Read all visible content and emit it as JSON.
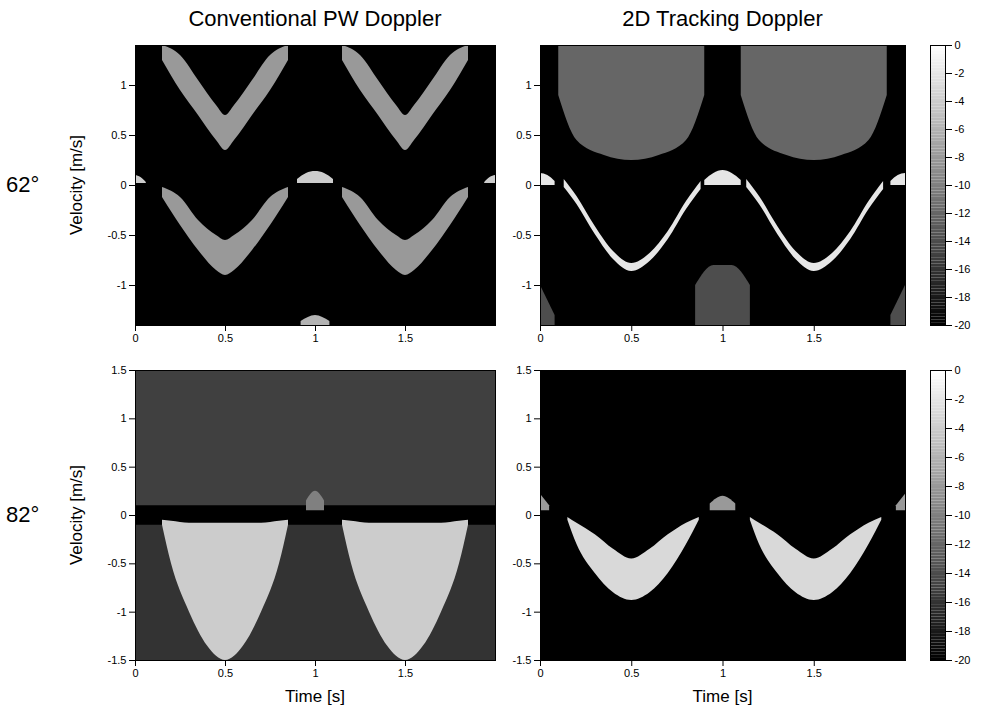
{
  "column_titles": [
    "Conventional PW Doppler",
    "2D Tracking Doppler"
  ],
  "row_titles": [
    "62°",
    "82°"
  ],
  "chart_data": [
    {
      "type": "area",
      "ylabel": "Velocity [m/s]",
      "xlim": [
        0,
        2
      ],
      "xticks": [
        0,
        0.5,
        1,
        1.5
      ],
      "ylim": [
        -1.4,
        1.4
      ],
      "yticks": [
        -1,
        -0.5,
        0,
        0.5,
        1
      ],
      "bands": [
        {
          "x": [
            0.15,
            0.25,
            0.35,
            0.45,
            0.5,
            0.55,
            0.65,
            0.75,
            0.85
          ],
          "lower": [
            1.25,
            0.95,
            0.7,
            0.45,
            0.35,
            0.45,
            0.7,
            0.95,
            1.25
          ],
          "upper": [
            1.4,
            1.3,
            1.05,
            0.8,
            0.7,
            0.8,
            1.05,
            1.3,
            1.4
          ],
          "level": -8
        },
        {
          "x": [
            1.15,
            1.25,
            1.35,
            1.45,
            1.5,
            1.55,
            1.65,
            1.75,
            1.85
          ],
          "lower": [
            1.25,
            0.95,
            0.7,
            0.45,
            0.35,
            0.45,
            0.7,
            0.95,
            1.25
          ],
          "upper": [
            1.4,
            1.3,
            1.05,
            0.8,
            0.7,
            0.8,
            1.05,
            1.3,
            1.4
          ],
          "level": -8
        },
        {
          "x": [
            0.15,
            0.25,
            0.35,
            0.45,
            0.5,
            0.55,
            0.65,
            0.75,
            0.85
          ],
          "lower": [
            -0.12,
            -0.4,
            -0.65,
            -0.85,
            -0.9,
            -0.85,
            -0.65,
            -0.4,
            -0.12
          ],
          "upper": [
            -0.02,
            -0.12,
            -0.35,
            -0.5,
            -0.55,
            -0.5,
            -0.35,
            -0.12,
            -0.02
          ],
          "level": -8
        },
        {
          "x": [
            1.15,
            1.25,
            1.35,
            1.45,
            1.5,
            1.55,
            1.65,
            1.75,
            1.85
          ],
          "lower": [
            -0.12,
            -0.4,
            -0.65,
            -0.85,
            -0.9,
            -0.85,
            -0.65,
            -0.4,
            -0.12
          ],
          "upper": [
            -0.02,
            -0.12,
            -0.35,
            -0.5,
            -0.55,
            -0.5,
            -0.35,
            -0.12,
            -0.02
          ],
          "level": -8
        },
        {
          "x": [
            0.9,
            0.95,
            1.0,
            1.05,
            1.1
          ],
          "lower": [
            0.02,
            0.02,
            0.02,
            0.02,
            0.02
          ],
          "upper": [
            0.06,
            0.12,
            0.14,
            0.12,
            0.06
          ],
          "level": -4
        },
        {
          "x": [
            0,
            0.03,
            0.06
          ],
          "lower": [
            0.02,
            0.02,
            0.02
          ],
          "upper": [
            0.1,
            0.08,
            0.03
          ],
          "level": -4
        },
        {
          "x": [
            1.94,
            1.97,
            2
          ],
          "lower": [
            0.02,
            0.02,
            0.02
          ],
          "upper": [
            0.03,
            0.08,
            0.1
          ],
          "level": -4
        },
        {
          "x": [
            0.92,
            1.0,
            1.08
          ],
          "lower": [
            -1.4,
            -1.4,
            -1.4
          ],
          "upper": [
            -1.36,
            -1.3,
            -1.36
          ],
          "level": -6
        }
      ]
    },
    {
      "type": "area",
      "xlim": [
        0,
        2
      ],
      "xticks": [
        0,
        0.5,
        1,
        1.5
      ],
      "ylim": [
        -1.4,
        1.4
      ],
      "yticks": [
        -1,
        -0.5,
        0,
        0.5,
        1
      ],
      "colorbar": {
        "range": [
          -20,
          0
        ],
        "ticks": [
          0,
          -2,
          -4,
          -6,
          -8,
          -10,
          -12,
          -14,
          -16,
          -18,
          -20
        ]
      },
      "bands": [
        {
          "x": [
            0.1,
            0.2,
            0.35,
            0.5,
            0.65,
            0.8,
            0.9
          ],
          "lower": [
            0.9,
            0.45,
            0.3,
            0.25,
            0.3,
            0.45,
            0.9
          ],
          "upper": [
            1.4,
            1.4,
            1.4,
            1.4,
            1.4,
            1.4,
            1.4
          ],
          "level": -12
        },
        {
          "x": [
            1.1,
            1.2,
            1.35,
            1.5,
            1.65,
            1.8,
            1.9
          ],
          "lower": [
            0.9,
            0.45,
            0.3,
            0.25,
            0.3,
            0.45,
            0.9
          ],
          "upper": [
            1.4,
            1.4,
            1.4,
            1.4,
            1.4,
            1.4,
            1.4
          ],
          "level": -12
        },
        {
          "x": [
            0.85,
            0.95,
            1.05,
            1.15
          ],
          "lower": [
            -1.4,
            -1.4,
            -1.4,
            -1.4
          ],
          "upper": [
            -1.0,
            -0.8,
            -0.8,
            -1.0
          ],
          "level": -14
        },
        {
          "x": [
            0,
            0.08
          ],
          "lower": [
            -1.4,
            -1.4
          ],
          "upper": [
            -1.0,
            -1.3
          ],
          "level": -14
        },
        {
          "x": [
            1.92,
            2
          ],
          "lower": [
            -1.4,
            -1.4
          ],
          "upper": [
            -1.3,
            -1.0
          ],
          "level": -14
        },
        {
          "x": [
            0.13,
            0.2,
            0.3,
            0.4,
            0.5,
            0.6,
            0.7,
            0.8,
            0.88
          ],
          "lower": [
            -0.02,
            -0.19,
            -0.49,
            -0.74,
            -0.86,
            -0.76,
            -0.54,
            -0.24,
            -0.04
          ],
          "upper": [
            0.06,
            -0.11,
            -0.41,
            -0.66,
            -0.78,
            -0.68,
            -0.46,
            -0.16,
            0.04
          ],
          "level": -2
        },
        {
          "x": [
            1.13,
            1.2,
            1.3,
            1.4,
            1.5,
            1.6,
            1.7,
            1.8,
            1.88
          ],
          "lower": [
            -0.02,
            -0.19,
            -0.49,
            -0.74,
            -0.86,
            -0.76,
            -0.54,
            -0.24,
            -0.04
          ],
          "upper": [
            0.06,
            -0.11,
            -0.41,
            -0.66,
            -0.78,
            -0.68,
            -0.46,
            -0.16,
            0.04
          ],
          "level": -2
        },
        {
          "x": [
            0.9,
            0.95,
            1.0,
            1.05,
            1.1
          ],
          "lower": [
            0,
            0,
            0,
            0,
            0
          ],
          "upper": [
            0.05,
            0.12,
            0.15,
            0.12,
            0.05
          ],
          "level": -2
        },
        {
          "x": [
            0,
            0.04,
            0.08
          ],
          "lower": [
            0,
            0,
            0
          ],
          "upper": [
            0.12,
            0.1,
            0.04
          ],
          "level": -2
        },
        {
          "x": [
            1.92,
            1.96,
            2
          ],
          "lower": [
            0,
            0,
            0
          ],
          "upper": [
            0.04,
            0.1,
            0.12
          ],
          "level": -2
        }
      ]
    },
    {
      "type": "area",
      "ylabel": "Velocity [m/s]",
      "xlabel": "Time [s]",
      "xlim": [
        0,
        2
      ],
      "xticks": [
        0,
        0.5,
        1,
        1.5
      ],
      "ylim": [
        -1.5,
        1.5
      ],
      "yticks": [
        -1.5,
        -1,
        -0.5,
        0,
        0.5,
        1,
        1.5
      ],
      "bands": [
        {
          "x": [
            0,
            2
          ],
          "lower": [
            0.1,
            0.1
          ],
          "upper": [
            1.5,
            1.5
          ],
          "level": -15
        },
        {
          "x": [
            0,
            2
          ],
          "lower": [
            -1.5,
            -1.5
          ],
          "upper": [
            -0.1,
            -0.1
          ],
          "level": -16
        },
        {
          "x": [
            0.15,
            0.2,
            0.3,
            0.4,
            0.5,
            0.6,
            0.7,
            0.8,
            0.85
          ],
          "lower": [
            -0.1,
            -0.5,
            -1.0,
            -1.35,
            -1.5,
            -1.35,
            -1.0,
            -0.5,
            -0.1
          ],
          "upper": [
            -0.05,
            -0.06,
            -0.08,
            -0.08,
            -0.08,
            -0.08,
            -0.08,
            -0.06,
            -0.05
          ],
          "level": -4
        },
        {
          "x": [
            1.15,
            1.2,
            1.3,
            1.4,
            1.5,
            1.6,
            1.7,
            1.8,
            1.85
          ],
          "lower": [
            -0.1,
            -0.5,
            -1.0,
            -1.35,
            -1.5,
            -1.35,
            -1.0,
            -0.5,
            -0.1
          ],
          "upper": [
            -0.05,
            -0.06,
            -0.08,
            -0.08,
            -0.08,
            -0.08,
            -0.08,
            -0.06,
            -0.05
          ],
          "level": -4
        },
        {
          "x": [
            0.95,
            1.0,
            1.05
          ],
          "lower": [
            0.05,
            0.05,
            0.05
          ],
          "upper": [
            0.15,
            0.25,
            0.15
          ],
          "level": -10
        }
      ]
    },
    {
      "type": "area",
      "xlabel": "Time [s]",
      "xlim": [
        0,
        2
      ],
      "xticks": [
        0,
        0.5,
        1,
        1.5
      ],
      "ylim": [
        -1.5,
        1.5
      ],
      "yticks": [
        -1.5,
        -1,
        -0.5,
        0,
        0.5,
        1,
        1.5
      ],
      "colorbar": {
        "range": [
          -20,
          0
        ],
        "ticks": [
          0,
          -2,
          -4,
          -6,
          -8,
          -10,
          -12,
          -14,
          -16,
          -18,
          -20
        ]
      },
      "bands": [
        {
          "x": [
            0.15,
            0.2,
            0.3,
            0.4,
            0.5,
            0.6,
            0.7,
            0.8,
            0.87
          ],
          "lower": [
            -0.05,
            -0.3,
            -0.6,
            -0.8,
            -0.88,
            -0.8,
            -0.6,
            -0.3,
            -0.05
          ],
          "upper": [
            -0.02,
            -0.08,
            -0.2,
            -0.35,
            -0.45,
            -0.35,
            -0.2,
            -0.08,
            -0.02
          ],
          "level": -3
        },
        {
          "x": [
            1.15,
            1.2,
            1.3,
            1.4,
            1.5,
            1.6,
            1.7,
            1.8,
            1.87
          ],
          "lower": [
            -0.05,
            -0.3,
            -0.6,
            -0.8,
            -0.88,
            -0.8,
            -0.6,
            -0.3,
            -0.05
          ],
          "upper": [
            -0.02,
            -0.08,
            -0.2,
            -0.35,
            -0.45,
            -0.35,
            -0.2,
            -0.08,
            -0.02
          ],
          "level": -3
        },
        {
          "x": [
            0.93,
            1.0,
            1.07
          ],
          "lower": [
            0.05,
            0.05,
            0.05
          ],
          "upper": [
            0.12,
            0.2,
            0.12
          ],
          "level": -8
        },
        {
          "x": [
            0,
            0.05
          ],
          "lower": [
            0.05,
            0.05
          ],
          "upper": [
            0.22,
            0.1
          ],
          "level": -8
        },
        {
          "x": [
            1.95,
            2
          ],
          "lower": [
            0.05,
            0.05
          ],
          "upper": [
            0.1,
            0.22
          ],
          "level": -8
        }
      ]
    }
  ]
}
